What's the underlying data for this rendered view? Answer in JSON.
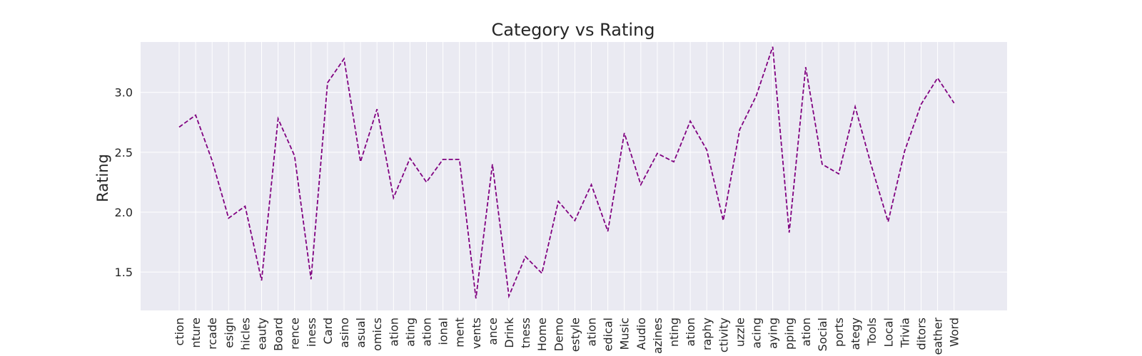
{
  "chart_data": {
    "type": "line",
    "title": "Category vs Rating",
    "xlabel": "",
    "ylabel": "Rating",
    "ylim": [
      1.18,
      3.42
    ],
    "yticks": [
      "1.5",
      "2.0",
      "2.5",
      "3.0"
    ],
    "grid": true,
    "line_color": "#800080",
    "line_style": "dashed",
    "background_color": "#eaeaf2",
    "grid_color": "#ffffff",
    "categories": [
      "ction",
      "nture",
      "rcade",
      "esign",
      "hicles",
      "eauty",
      "Board",
      "rence",
      "iness",
      "Card",
      "asino",
      "asual",
      "omics",
      "ation",
      "ating",
      "ation",
      "ional",
      "ment",
      "vents",
      "ance",
      "Drink",
      "tness",
      "Home",
      "Demo",
      "estyle",
      "ation",
      "edical",
      "Music",
      "Audio",
      "azines",
      "nting",
      "ation",
      "raphy",
      "ctivity",
      "uzzle",
      "acing",
      "aying",
      "pping",
      "ation",
      "Social",
      "ports",
      "ategy",
      "Tools",
      "Local",
      "Trivia",
      "ditors",
      "eather",
      "Word"
    ],
    "values": [
      2.71,
      2.81,
      2.43,
      1.95,
      2.05,
      1.43,
      2.78,
      2.47,
      1.44,
      3.08,
      3.28,
      2.42,
      2.86,
      2.12,
      2.45,
      2.25,
      2.44,
      2.44,
      1.28,
      2.4,
      1.3,
      1.63,
      1.49,
      2.09,
      1.93,
      2.23,
      1.84,
      2.66,
      2.23,
      2.49,
      2.42,
      2.76,
      2.52,
      1.93,
      2.69,
      2.97,
      3.38,
      1.83,
      3.21,
      2.4,
      2.32,
      2.88,
      2.38,
      1.92,
      2.51,
      2.9,
      3.12,
      2.91
    ]
  }
}
